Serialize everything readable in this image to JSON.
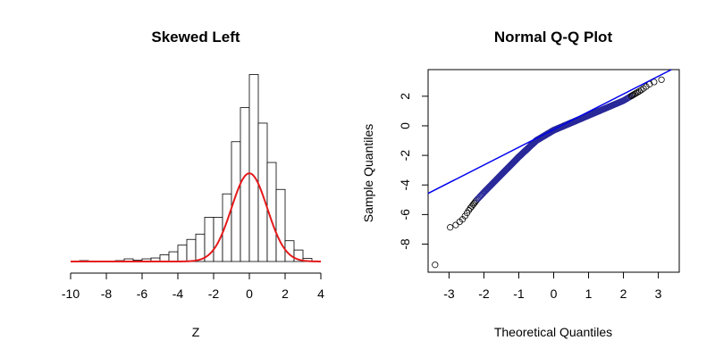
{
  "chart_data": [
    {
      "type": "bar",
      "title": "Skewed Left",
      "xlabel": "Z",
      "ylabel": "",
      "xlim": [
        -10,
        4
      ],
      "xticks": [
        -10,
        -8,
        -6,
        -4,
        -2,
        0,
        2,
        4
      ],
      "xtick_labels": [
        "-10",
        "-8",
        "-6",
        "-4",
        "-2",
        "0",
        "2",
        "4"
      ],
      "bin_width": 0.5,
      "bins": [
        {
          "x0": -9.5,
          "x1": -9.0,
          "density": 0.004
        },
        {
          "x0": -9.0,
          "x1": -8.5,
          "density": 0.002
        },
        {
          "x0": -8.5,
          "x1": -8.0,
          "density": 0.002
        },
        {
          "x0": -8.0,
          "x1": -7.5,
          "density": 0.002
        },
        {
          "x0": -7.5,
          "x1": -7.0,
          "density": 0.004
        },
        {
          "x0": -7.0,
          "x1": -6.5,
          "density": 0.012
        },
        {
          "x0": -6.5,
          "x1": -6.0,
          "density": 0.006
        },
        {
          "x0": -6.0,
          "x1": -5.5,
          "density": 0.012
        },
        {
          "x0": -5.5,
          "x1": -5.0,
          "density": 0.016
        },
        {
          "x0": -5.0,
          "x1": -4.5,
          "density": 0.03
        },
        {
          "x0": -4.5,
          "x1": -4.0,
          "density": 0.044
        },
        {
          "x0": -4.0,
          "x1": -3.5,
          "density": 0.074
        },
        {
          "x0": -3.5,
          "x1": -3.0,
          "density": 0.1
        },
        {
          "x0": -3.0,
          "x1": -2.5,
          "density": 0.124
        },
        {
          "x0": -2.5,
          "x1": -2.0,
          "density": 0.2
        },
        {
          "x0": -2.0,
          "x1": -1.5,
          "density": 0.2
        },
        {
          "x0": -1.5,
          "x1": -1.0,
          "density": 0.306
        },
        {
          "x0": -1.0,
          "x1": -0.5,
          "density": 0.542
        },
        {
          "x0": -0.5,
          "x1": 0.0,
          "density": 0.696
        },
        {
          "x0": 0.0,
          "x1": 0.5,
          "density": 0.846
        },
        {
          "x0": 0.5,
          "x1": 1.0,
          "density": 0.626
        },
        {
          "x0": 1.0,
          "x1": 1.5,
          "density": 0.448
        },
        {
          "x0": 1.5,
          "x1": 2.0,
          "density": 0.326
        },
        {
          "x0": 2.0,
          "x1": 2.5,
          "density": 0.094
        },
        {
          "x0": 2.5,
          "x1": 3.0,
          "density": 0.052
        },
        {
          "x0": 3.0,
          "x1": 3.5,
          "density": 0.014
        }
      ],
      "ylim": [
        0,
        0.86
      ],
      "overlay": {
        "type": "line",
        "curve": "normal density",
        "mean": 0,
        "sd": 1,
        "color": "#e41a1c"
      },
      "bar_fill": "#ffffff",
      "bar_stroke": "#000000"
    },
    {
      "type": "scatter",
      "title": "Normal Q-Q Plot",
      "xlabel": "Theoretical Quantiles",
      "ylabel": "Sample Quantiles",
      "xlim": [
        -3.6,
        3.6
      ],
      "ylim": [
        -9.9,
        3.8
      ],
      "xticks": [
        -3,
        -2,
        -1,
        0,
        1,
        2,
        3
      ],
      "xtick_labels": [
        "-3",
        "-2",
        "-1",
        "0",
        "1",
        "2",
        "3"
      ],
      "yticks": [
        -8,
        -6,
        -4,
        -2,
        0,
        2
      ],
      "ytick_labels": [
        "-8",
        "-6",
        "-4",
        "-2",
        "0",
        "2"
      ],
      "n_points": 1000,
      "quantile_curve": [
        [
          -3.4,
          -9.4
        ],
        [
          -3.0,
          -6.9
        ],
        [
          -2.8,
          -6.7
        ],
        [
          -2.6,
          -6.3
        ],
        [
          -2.4,
          -5.6
        ],
        [
          -2.2,
          -5.0
        ],
        [
          -2.0,
          -4.5
        ],
        [
          -1.5,
          -3.3
        ],
        [
          -1.0,
          -2.1
        ],
        [
          -0.5,
          -1.0
        ],
        [
          0.0,
          -0.3
        ],
        [
          0.5,
          0.2
        ],
        [
          1.0,
          0.7
        ],
        [
          1.5,
          1.2
        ],
        [
          2.0,
          1.7
        ],
        [
          2.5,
          2.4
        ],
        [
          2.8,
          2.9
        ],
        [
          3.0,
          3.05
        ],
        [
          3.2,
          3.2
        ],
        [
          3.4,
          3.3
        ]
      ],
      "reference_line": {
        "intercept": -0.25,
        "slope": 1.2,
        "color": "#0000ee"
      },
      "marker": "open-circle",
      "marker_color": "#000000",
      "marker_overlap_color": "#2a2a9a"
    }
  ]
}
